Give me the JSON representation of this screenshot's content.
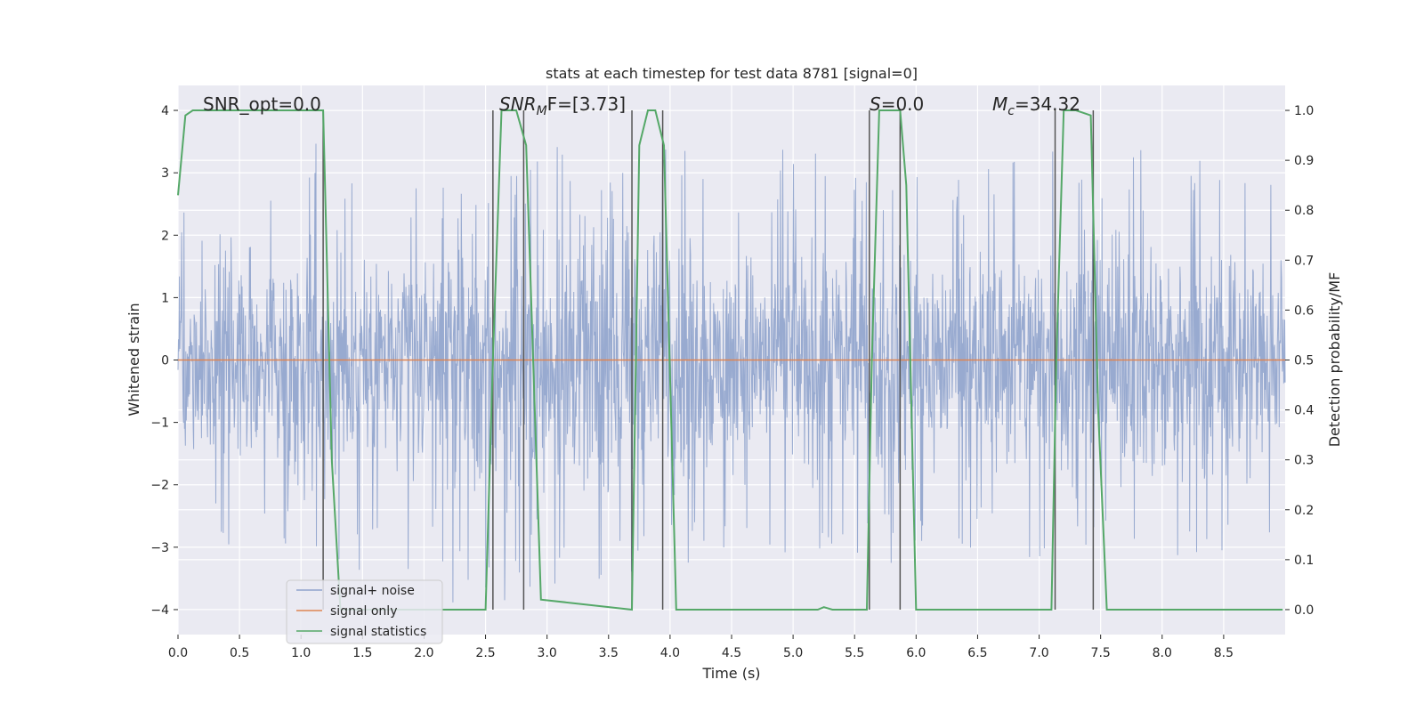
{
  "chart_data": {
    "type": "line",
    "title": "stats at each timestep for test data 8781 [signal=0]",
    "xlabel": "Time (s)",
    "ylabel": "Whitened strain",
    "y2label": "Detection probability/MF",
    "xlim": [
      0.0,
      9.0
    ],
    "ylim": [
      -4.4,
      4.4
    ],
    "y2lim": [
      -0.05,
      1.05
    ],
    "xticks": [
      0.0,
      0.5,
      1.0,
      1.5,
      2.0,
      2.5,
      3.0,
      3.5,
      4.0,
      4.5,
      5.0,
      5.5,
      6.0,
      6.5,
      7.0,
      7.5,
      8.0,
      8.5
    ],
    "xtick_labels": [
      "0.0",
      "0.5",
      "1.0",
      "1.5",
      "2.0",
      "2.5",
      "3.0",
      "3.5",
      "4.0",
      "4.5",
      "5.0",
      "5.5",
      "6.0",
      "6.5",
      "7.0",
      "7.5",
      "8.0",
      "8.5"
    ],
    "yticks": [
      -4,
      -3,
      -2,
      -1,
      0,
      1,
      2,
      3,
      4
    ],
    "ytick_labels": [
      "−4",
      "−3",
      "−2",
      "−1",
      "0",
      "1",
      "2",
      "3",
      "4"
    ],
    "y2ticks": [
      0.0,
      0.1,
      0.2,
      0.3,
      0.4,
      0.5,
      0.6,
      0.7,
      0.8,
      0.9,
      1.0
    ],
    "y2tick_labels": [
      "0.0",
      "0.1",
      "0.2",
      "0.3",
      "0.4",
      "0.5",
      "0.6",
      "0.7",
      "0.8",
      "0.9",
      "1.0"
    ],
    "grid": true,
    "legend_position": "lower-left",
    "series": [
      {
        "name": "signal+ noise",
        "color": "#8fa3cc",
        "style": "dense noise trace, amplitude envelope",
        "envelope_x": [
          0.0,
          0.5,
          1.0,
          1.5,
          2.0,
          2.5,
          3.0,
          3.5,
          4.0,
          4.5,
          5.0,
          5.5,
          6.0,
          6.5,
          7.0,
          7.5,
          8.0,
          8.5,
          9.0
        ],
        "envelope_hi": [
          2.5,
          2.6,
          3.7,
          2.9,
          3.0,
          2.5,
          3.6,
          3.6,
          3.6,
          3.0,
          3.5,
          3.0,
          3.3,
          3.0,
          3.4,
          3.2,
          3.5,
          3.3,
          2.7
        ],
        "envelope_lo": [
          -3.3,
          -2.9,
          -3.5,
          -3.4,
          -3.8,
          -4.1,
          -3.6,
          -3.6,
          -3.4,
          -3.0,
          -3.3,
          -3.2,
          -3.3,
          -3.0,
          -3.6,
          -3.2,
          -3.6,
          -3.3,
          -2.7
        ]
      },
      {
        "name": "signal only",
        "color": "#dd8452",
        "x": [
          0.0,
          9.0
        ],
        "y": [
          0.0,
          0.0
        ]
      },
      {
        "name": "signal statistics",
        "color": "#55a868",
        "axis": "right",
        "x": [
          0.0,
          0.06,
          0.12,
          1.18,
          1.25,
          1.32,
          2.5,
          2.56,
          2.63,
          2.75,
          2.83,
          2.95,
          3.69,
          3.75,
          3.82,
          3.88,
          3.95,
          4.05,
          5.2,
          5.25,
          5.32,
          5.6,
          5.64,
          5.7,
          5.8,
          5.87,
          5.92,
          6.0,
          7.1,
          7.14,
          7.2,
          7.3,
          7.42,
          7.48,
          7.55,
          8.98
        ],
        "y": [
          0.83,
          0.99,
          1.0,
          1.0,
          0.3,
          0.0,
          0.0,
          0.5,
          1.0,
          1.0,
          0.93,
          0.02,
          0.0,
          0.93,
          1.0,
          1.0,
          0.93,
          0.0,
          0.0,
          0.005,
          0.0,
          0.0,
          0.5,
          1.0,
          1.0,
          1.0,
          0.85,
          0.0,
          0.0,
          0.5,
          1.0,
          1.0,
          0.99,
          0.4,
          0.0,
          0.0
        ]
      }
    ],
    "vlines": [
      1.18,
      2.56,
      2.81,
      3.69,
      3.94,
      5.62,
      5.87,
      7.13,
      7.44
    ],
    "vline_color": "#555555",
    "annotations": [
      {
        "text": "SNR_opt=0.0",
        "x": 0.2
      },
      {
        "text_main": "SNR",
        "text_sub": "M",
        "text_rest": "F=[3.73]",
        "x": 2.6
      },
      {
        "text_main": "S",
        "text_rest": "=0.0",
        "x": 5.63
      },
      {
        "text_main": "M",
        "text_sub": "c",
        "text_rest": "=34.32",
        "x": 6.63
      }
    ]
  }
}
